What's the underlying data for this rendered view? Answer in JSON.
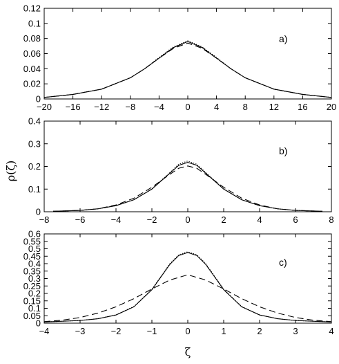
{
  "chart_data": [
    {
      "type": "line",
      "panel_label": "a)",
      "xlim": [
        -20,
        20
      ],
      "ylim": [
        0,
        0.12
      ],
      "xticks": [
        -20,
        -16,
        -12,
        -8,
        -4,
        0,
        4,
        8,
        12,
        16,
        20
      ],
      "yticks": [
        0,
        0.02,
        0.04,
        0.06,
        0.08,
        0.1,
        0.12
      ],
      "xtick_labels": [
        "−20",
        "−16",
        "−12",
        "−8",
        "−4",
        "0",
        "4",
        "8",
        "12",
        "16",
        "20"
      ],
      "ytick_labels": [
        "0",
        "0.02",
        "0.04",
        "0.06",
        "0.08",
        "0.1",
        "0.12"
      ],
      "grid": false,
      "series": [
        {
          "style": "solid",
          "x": [
            -20,
            -16,
            -12,
            -8,
            -6,
            -4,
            -2,
            0,
            2,
            4,
            6,
            8,
            12,
            16,
            20
          ],
          "y": [
            0.002,
            0.006,
            0.013,
            0.028,
            0.04,
            0.054,
            0.068,
            0.076,
            0.068,
            0.054,
            0.04,
            0.028,
            0.013,
            0.006,
            0.002
          ]
        },
        {
          "style": "dotted",
          "x": [
            -20,
            -16,
            -12,
            -8,
            -6,
            -4,
            -2,
            0,
            2,
            4,
            6,
            8,
            12,
            16,
            20
          ],
          "y": [
            0.002,
            0.006,
            0.013,
            0.028,
            0.04,
            0.055,
            0.069,
            0.077,
            0.069,
            0.055,
            0.04,
            0.028,
            0.013,
            0.006,
            0.002
          ]
        },
        {
          "style": "dashed",
          "x": [
            -20,
            -16,
            -12,
            -8,
            -6,
            -4,
            -2,
            0,
            2,
            4,
            6,
            8,
            12,
            16,
            20
          ],
          "y": [
            0.002,
            0.006,
            0.013,
            0.028,
            0.04,
            0.054,
            0.067,
            0.074,
            0.067,
            0.054,
            0.04,
            0.028,
            0.013,
            0.006,
            0.002
          ]
        }
      ]
    },
    {
      "type": "line",
      "panel_label": "b)",
      "xlim": [
        -8,
        8
      ],
      "ylim": [
        0,
        0.4
      ],
      "xticks": [
        -8,
        -6,
        -4,
        -2,
        0,
        2,
        4,
        6,
        8
      ],
      "yticks": [
        0,
        0.1,
        0.2,
        0.3,
        0.4
      ],
      "xtick_labels": [
        "−8",
        "−6",
        "−4",
        "−2",
        "0",
        "2",
        "4",
        "6",
        "8"
      ],
      "ytick_labels": [
        "0",
        "0.1",
        "0.2",
        "0.3",
        "0.4"
      ],
      "ylabel": "ρ(ζ)",
      "grid": false,
      "series": [
        {
          "style": "solid",
          "x": [
            -7.5,
            -6,
            -5,
            -4,
            -3,
            -2,
            -1,
            -0.5,
            0,
            0.5,
            1,
            2,
            3,
            4,
            5,
            6,
            7.5
          ],
          "y": [
            0.002,
            0.006,
            0.013,
            0.027,
            0.053,
            0.1,
            0.17,
            0.205,
            0.218,
            0.205,
            0.17,
            0.1,
            0.053,
            0.027,
            0.013,
            0.006,
            0.002
          ]
        },
        {
          "style": "dotted",
          "x": [
            -7.5,
            -6,
            -5,
            -4,
            -3,
            -2,
            -1,
            -0.5,
            0,
            0.5,
            1,
            2,
            3,
            4,
            5,
            6,
            7.5
          ],
          "y": [
            0.002,
            0.006,
            0.013,
            0.027,
            0.053,
            0.101,
            0.173,
            0.21,
            0.224,
            0.21,
            0.173,
            0.101,
            0.053,
            0.027,
            0.013,
            0.006,
            0.002
          ]
        },
        {
          "style": "dashed",
          "x": [
            -7.5,
            -6,
            -5,
            -4,
            -3,
            -2,
            -1,
            -0.5,
            0,
            0.5,
            1,
            2,
            3,
            4,
            5,
            6,
            7.5
          ],
          "y": [
            0.002,
            0.006,
            0.013,
            0.03,
            0.06,
            0.108,
            0.165,
            0.192,
            0.202,
            0.192,
            0.165,
            0.108,
            0.06,
            0.03,
            0.013,
            0.006,
            0.002
          ]
        }
      ]
    },
    {
      "type": "line",
      "panel_label": "c)",
      "xlim": [
        -4,
        4
      ],
      "ylim": [
        0,
        0.6
      ],
      "xticks": [
        -4,
        -3,
        -2,
        -1,
        0,
        1,
        2,
        3,
        4
      ],
      "yticks": [
        0,
        0.05,
        0.1,
        0.15,
        0.2,
        0.25,
        0.3,
        0.35,
        0.4,
        0.45,
        0.5,
        0.55,
        0.6
      ],
      "xtick_labels": [
        "−4",
        "−3",
        "−2",
        "−1",
        "0",
        "1",
        "2",
        "3",
        "4"
      ],
      "ytick_labels": [
        "0",
        "0.05",
        "0.1",
        "0.15",
        "0.2",
        "0.25",
        "0.3",
        "0.35",
        "0.4",
        "0.45",
        "0.5",
        "0.55",
        "0.6"
      ],
      "xlabel": "ζ",
      "grid": false,
      "series": [
        {
          "style": "solid",
          "x": [
            -4,
            -3,
            -2.5,
            -2,
            -1.5,
            -1,
            -0.75,
            -0.5,
            -0.25,
            0,
            0.25,
            0.5,
            0.75,
            1,
            1.5,
            2,
            2.5,
            3,
            4
          ],
          "y": [
            0.008,
            0.018,
            0.03,
            0.055,
            0.11,
            0.225,
            0.31,
            0.395,
            0.455,
            0.475,
            0.455,
            0.395,
            0.31,
            0.225,
            0.11,
            0.055,
            0.03,
            0.018,
            0.008
          ]
        },
        {
          "style": "dotted",
          "x": [
            -4,
            -3,
            -2.5,
            -2,
            -1.5,
            -1,
            -0.75,
            -0.5,
            -0.25,
            0,
            0.25,
            0.5,
            0.75,
            1,
            1.5,
            2,
            2.5,
            3,
            4
          ],
          "y": [
            0.008,
            0.018,
            0.03,
            0.056,
            0.112,
            0.228,
            0.314,
            0.4,
            0.46,
            0.48,
            0.46,
            0.4,
            0.314,
            0.228,
            0.112,
            0.056,
            0.03,
            0.018,
            0.008
          ]
        },
        {
          "style": "dashed",
          "x": [
            -4,
            -3.5,
            -3,
            -2.5,
            -2,
            -1.5,
            -1,
            -0.5,
            0,
            0.5,
            1,
            1.5,
            2,
            2.5,
            3,
            3.5,
            4
          ],
          "y": [
            0.01,
            0.02,
            0.038,
            0.068,
            0.11,
            0.165,
            0.23,
            0.29,
            0.325,
            0.29,
            0.23,
            0.165,
            0.11,
            0.068,
            0.038,
            0.02,
            0.01
          ]
        }
      ]
    }
  ]
}
